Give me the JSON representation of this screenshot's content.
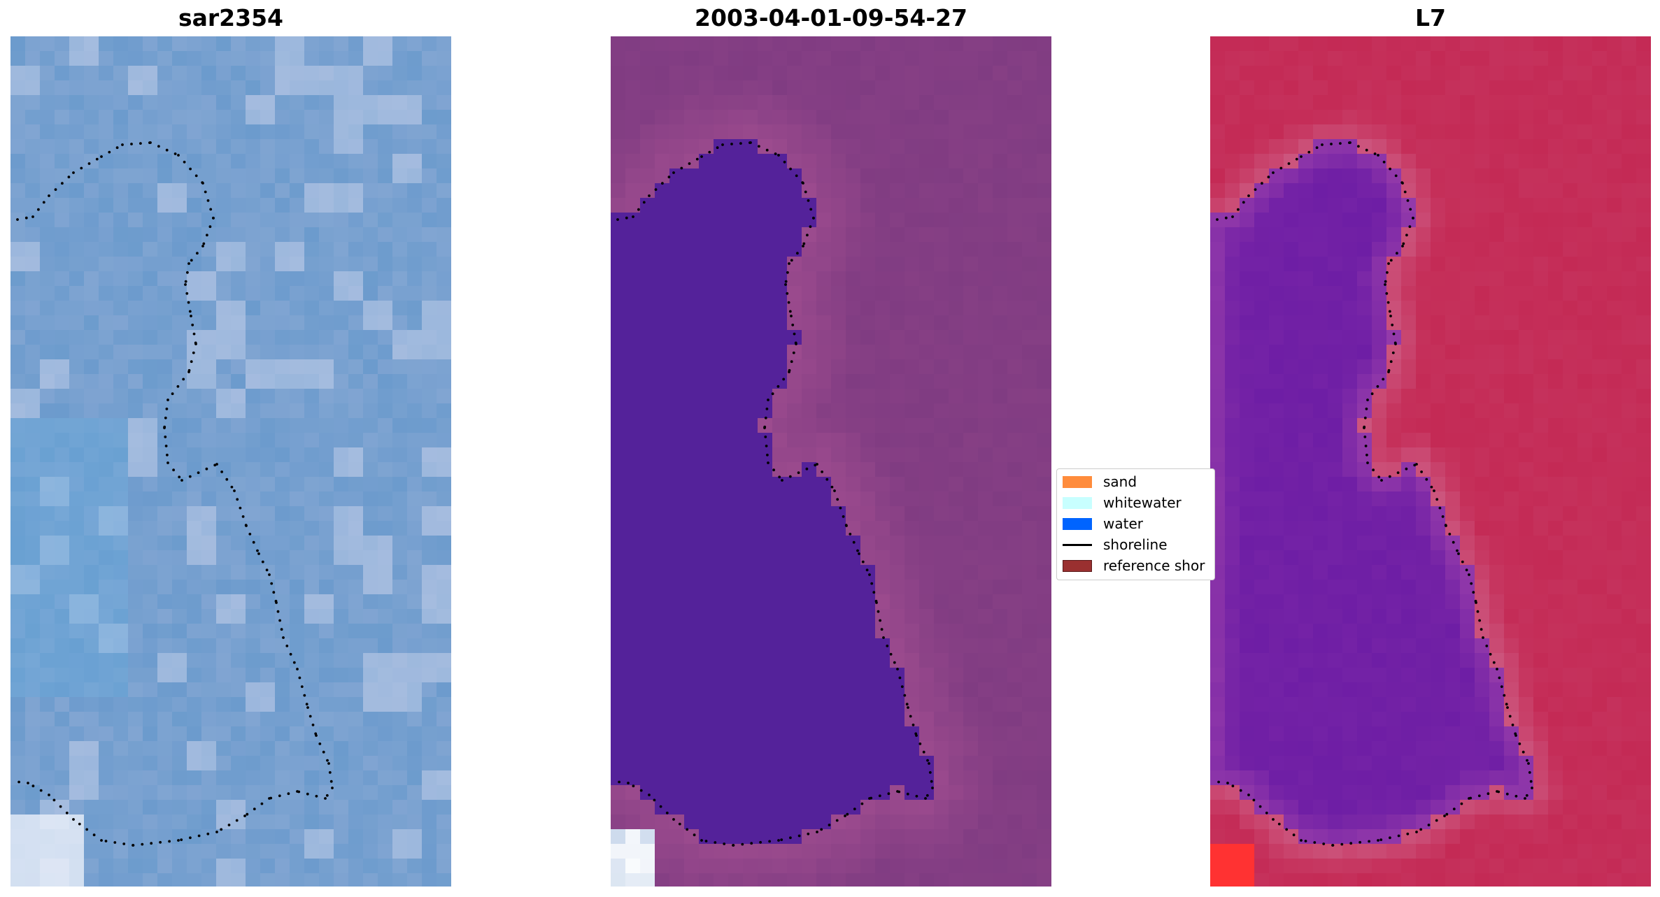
{
  "panels": [
    {
      "title": "sar2354",
      "icon": "rgb-image-icon"
    },
    {
      "title": "2003-04-01-09-54-27",
      "icon": "classified-image-icon"
    },
    {
      "title": "L7",
      "icon": "mndwi-image-icon"
    }
  ],
  "legend": {
    "items": [
      {
        "label": "sand",
        "color": "#ff8c3c",
        "kind": "patch"
      },
      {
        "label": "whitewater",
        "color": "#c8ffff",
        "kind": "patch"
      },
      {
        "label": "water",
        "color": "#0064ff",
        "kind": "patch"
      },
      {
        "label": "shoreline",
        "color": "#000000",
        "kind": "line"
      },
      {
        "label": "reference shor",
        "color": "#9a3030",
        "kind": "patch"
      }
    ]
  },
  "colors": {
    "rgb_base": "#6c9bcd",
    "classified_land": "#803c82",
    "classified_water": "#54229a",
    "mndwi_land": "#c42a55",
    "mndwi_water": "#6e1ea5"
  }
}
